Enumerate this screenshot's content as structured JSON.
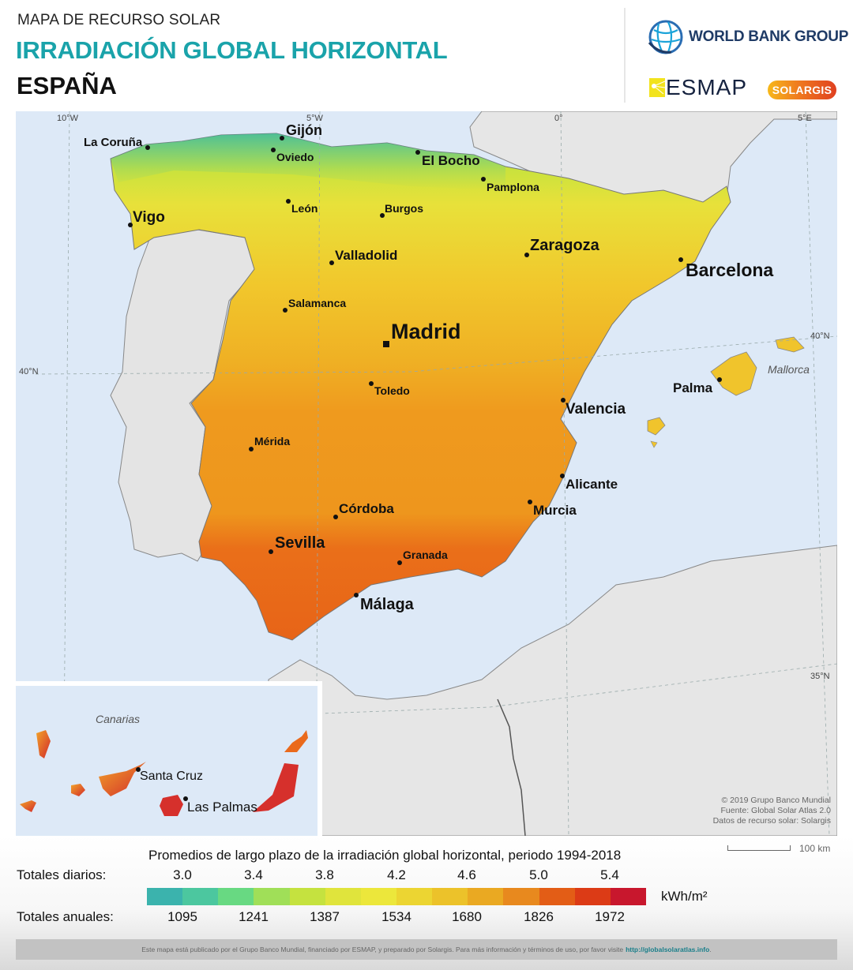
{
  "header": {
    "kicker": "MAPA DE RECURSO SOLAR",
    "title": "IRRADIACIÓN GLOBAL HORIZONTAL",
    "country": "ESPAÑA",
    "logos": {
      "world_bank": "WORLD BANK GROUP",
      "esmap": "ESMAP",
      "solargis": "SOLARGIS"
    }
  },
  "map": {
    "graticule": {
      "lon": [
        "10°W",
        "5°W",
        "0°",
        "5°E"
      ],
      "lat": [
        "40°N",
        "40°N",
        "35°N"
      ]
    },
    "cities": [
      {
        "name": "La Coruña",
        "size": "m"
      },
      {
        "name": "Gijón",
        "size": "l"
      },
      {
        "name": "Oviedo",
        "size": "s"
      },
      {
        "name": "El Bocho",
        "size": "l"
      },
      {
        "name": "Pamplona",
        "size": "s"
      },
      {
        "name": "Vigo",
        "size": "l"
      },
      {
        "name": "León",
        "size": "s"
      },
      {
        "name": "Burgos",
        "size": "s"
      },
      {
        "name": "Zaragoza",
        "size": "l"
      },
      {
        "name": "Barcelona",
        "size": "xl"
      },
      {
        "name": "Valladolid",
        "size": "m"
      },
      {
        "name": "Salamanca",
        "size": "s"
      },
      {
        "name": "Madrid",
        "size": "xxl"
      },
      {
        "name": "Toledo",
        "size": "s"
      },
      {
        "name": "Palma",
        "size": "m"
      },
      {
        "name": "Valencia",
        "size": "l"
      },
      {
        "name": "Mérida",
        "size": "s"
      },
      {
        "name": "Alicante",
        "size": "m"
      },
      {
        "name": "Córdoba",
        "size": "m"
      },
      {
        "name": "Murcia",
        "size": "m"
      },
      {
        "name": "Sevilla",
        "size": "l"
      },
      {
        "name": "Granada",
        "size": "s"
      },
      {
        "name": "Málaga",
        "size": "l"
      }
    ],
    "regions": {
      "mallorca": "Mallorca",
      "canarias": "Canarias"
    },
    "inset_cities": [
      {
        "name": "Santa Cruz"
      },
      {
        "name": "Las Palmas"
      }
    ],
    "credits": [
      "© 2019 Grupo Banco Mundial",
      "Fuente: Global Solar Atlas 2.0",
      "Datos de recurso solar: Solargis"
    ]
  },
  "legend": {
    "title": "Promedios de largo plazo de la irradiación global horizontal, periodo 1994-2018",
    "daily_label": "Totales diarios:",
    "annual_label": "Totales anuales:",
    "daily_ticks": [
      "3.0",
      "3.4",
      "3.8",
      "4.2",
      "4.6",
      "5.0",
      "5.4"
    ],
    "annual_ticks": [
      "1095",
      "1241",
      "1387",
      "1534",
      "1680",
      "1826",
      "1972"
    ],
    "unit": "kWh/m²",
    "colors": [
      "#3bb3ad",
      "#4cc79f",
      "#68d982",
      "#a0df58",
      "#c5e23f",
      "#e0e43c",
      "#ece73b",
      "#ecd532",
      "#ecc22a",
      "#eaa922",
      "#e8891e",
      "#e35d16",
      "#dc3b16",
      "#c8172d"
    ],
    "scale_bar": "100 km"
  },
  "footer": {
    "text": "Este mapa está publicado por el Grupo Banco Mundial, financiado por ESMAP, y preparado por Solargis. Para más información y términos de uso, por favor visite",
    "link": "http://globalsolaratlas.info",
    "trail": "."
  },
  "chart_data": {
    "type": "heatmap",
    "title": "IRRADIACIÓN GLOBAL HORIZONTAL — ESPAÑA",
    "subtitle": "Promedios de largo plazo de la irradiación global horizontal, periodo 1994-2018",
    "unit": "kWh/m²",
    "legend_daily": [
      3.0,
      3.4,
      3.8,
      4.2,
      4.6,
      5.0,
      5.4
    ],
    "legend_annual": [
      1095,
      1241,
      1387,
      1534,
      1680,
      1826,
      1972
    ],
    "color_steps": 14
  }
}
